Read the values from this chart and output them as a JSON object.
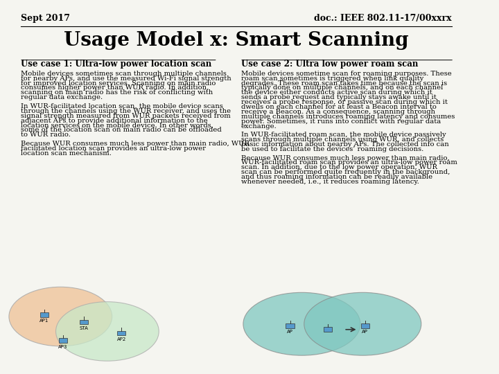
{
  "bg_color": "#f5f5f0",
  "header_left": "Sept 2017",
  "header_right": "doc.: IEEE 802.11-17/00xxrx",
  "title": "Usage Model x: Smart Scanning",
  "col1_heading": "Use case 1: Ultra-low power location scan",
  "col1_para1": "Mobile devices sometimes scan through multiple channels for nearby APs, and use the measured Wi-Fi signal strength for improved location services. Scanning on main radio consumes higher power than WUR radio. In addition, scanning on main radio has the risk of conflicting with regular data exchange.",
  "col1_para2": "In WUR-facilitated location scan, the mobile device scans through the channels using the WUR receiver, and uses the signal strength measured from WUR packets received from adjacent APs to provide additional information to the location services on the mobile device. In other words, some of the location scan on main radio can be offloaded to WUR radio.",
  "col1_para3": "Because WUR consumes much less power than main radio, WUR facilitated location scan provides an ultra-low power location scan mechanism.",
  "col2_heading": "Use case 2: Ultra low power roam scan",
  "col2_para1": "Mobile devices sometime scan for roaming purposes. These roam scan sometimes is triggered when link quality degrades. These roam scan takes time because the scan is typically done on multiple channels, and on each channel the device either conducts active scan during which it sends a probe request and typically stays awake until it receives a probe response, or passive scan during which it dwells on each channel for at least a Beacon interval to receive a Beacon. As a consequence, scanning through multiple channels introduces roaming latency and consumes power. Sometimes, it runs into conflict with regular data exchange.",
  "col2_para2": "In WUR-facilitated roam scan, the mobile device passively scans through multiple channels using WUR, and collects basic information about nearby APs. The collected info  can be used to facilitate the devices’ roaming decisions.",
  "col2_para3": "Because WUR consumes much less power than main radio, WUR-facilitated roam scan provides an ultra-low power roam scan. In addition, due to the low power operation, WUR scan can be performed quite frequently in the background, and thus roaming information can be readily available whenever needed, i.e., it reduces roaming latency.",
  "text_color": "#000000",
  "header_fontsize": 9,
  "title_fontsize": 20,
  "heading_fontsize": 8.5,
  "body_fontsize": 7.2
}
